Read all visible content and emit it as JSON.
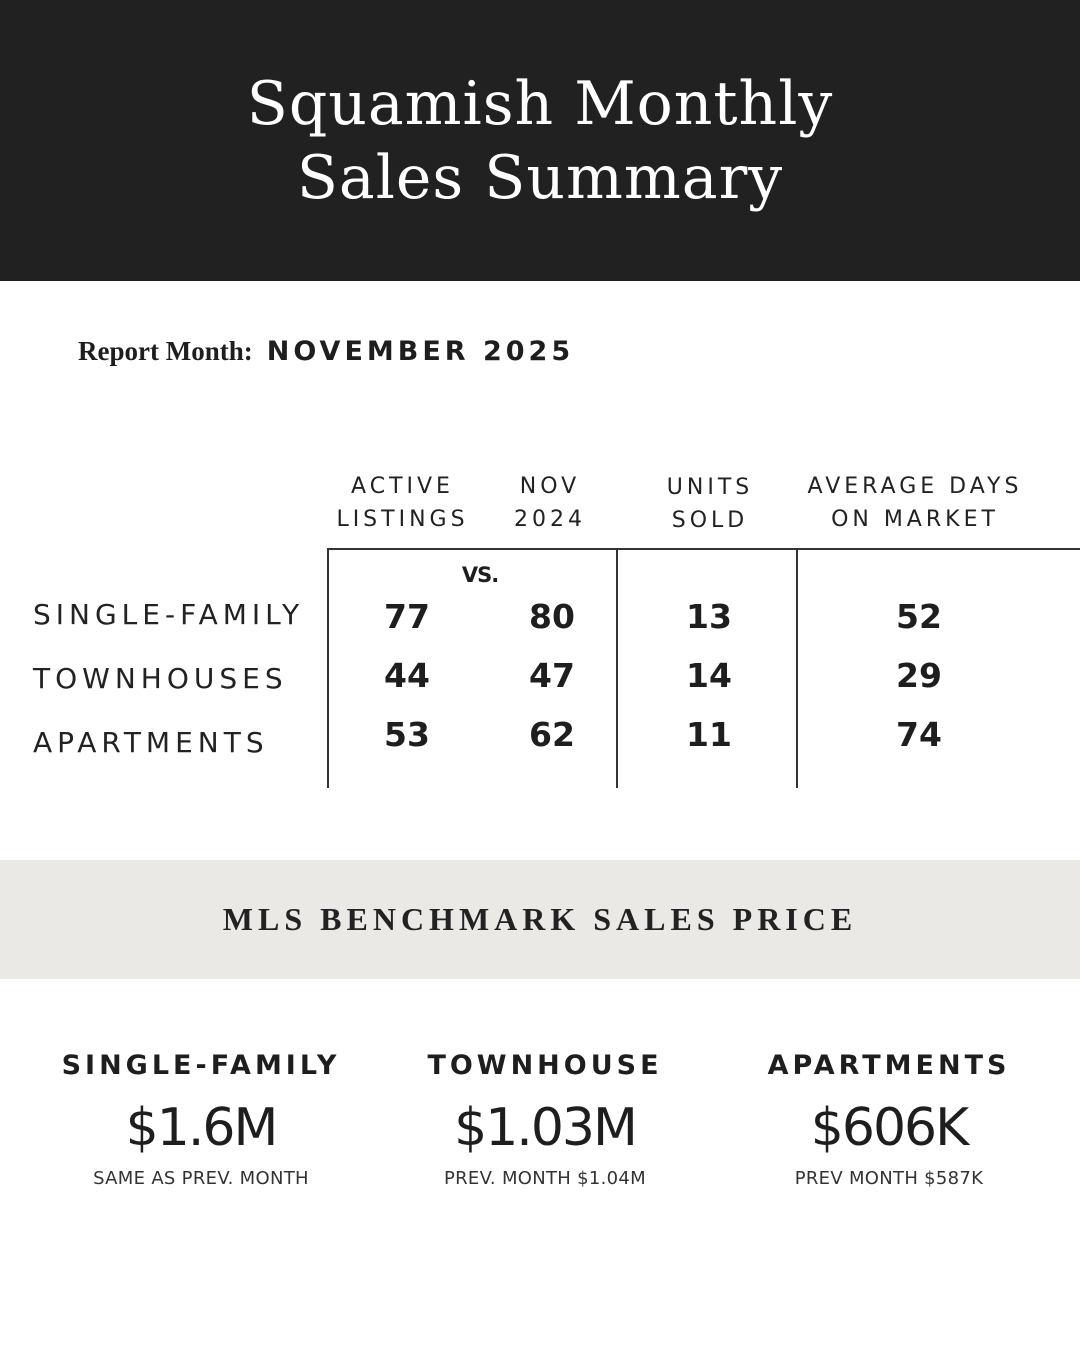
{
  "header": {
    "title_line1": "Squamish Monthly",
    "title_line2": "Sales Summary"
  },
  "report": {
    "label": "Report Month:",
    "value": "NOVEMBER 2025"
  },
  "table": {
    "columns": [
      {
        "line1": "ACTIVE",
        "line2": "LISTINGS"
      },
      {
        "line1": "NOV",
        "line2": "2024"
      },
      {
        "line1": "UNITS",
        "line2": "SOLD"
      },
      {
        "line1": "AVERAGE DAYS",
        "line2": "ON MARKET"
      }
    ],
    "vs_label": "VS.",
    "rows": [
      {
        "label": "SINGLE-FAMILY",
        "active": "77",
        "prev": "80",
        "sold": "13",
        "dom": "52"
      },
      {
        "label": "TOWNHOUSES",
        "active": "44",
        "prev": "47",
        "sold": "14",
        "dom": "29"
      },
      {
        "label": "APARTMENTS",
        "active": "53",
        "prev": "62",
        "sold": "11",
        "dom": "74"
      }
    ]
  },
  "benchmark": {
    "title": "MLS BENCHMARK SALES PRICE",
    "items": [
      {
        "type": "SINGLE-FAMILY",
        "price": "$1.6M",
        "note": "SAME AS PREV. MONTH"
      },
      {
        "type": "TOWNHOUSE",
        "price": "$1.03M",
        "note": "PREV. MONTH $1.04M"
      },
      {
        "type": "APARTMENTS",
        "price": "$606K",
        "note": "PREV MONTH $587K"
      }
    ]
  }
}
